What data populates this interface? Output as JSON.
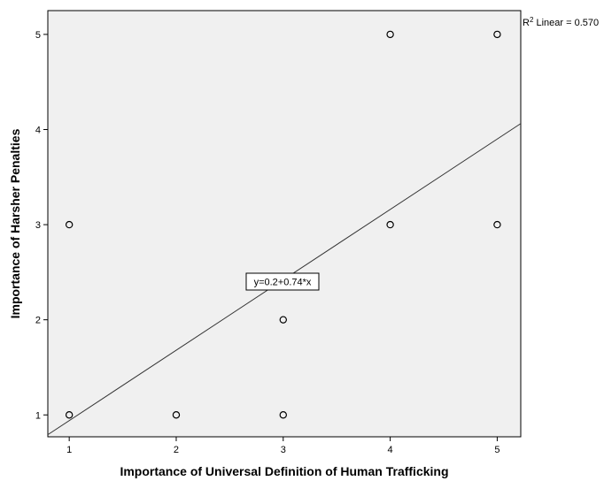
{
  "chart_data": {
    "type": "scatter",
    "title": "",
    "xlabel": "Importance of Universal Definition of Human Trafficking",
    "ylabel": "Importance of Harsher Penalties",
    "xlim": [
      0.8,
      5.22
    ],
    "ylim": [
      0.77,
      5.25
    ],
    "x_ticks": [
      1,
      2,
      3,
      4,
      5
    ],
    "y_ticks": [
      1,
      2,
      3,
      4,
      5
    ],
    "grid": false,
    "points": [
      {
        "x": 1,
        "y": 1
      },
      {
        "x": 1,
        "y": 3
      },
      {
        "x": 2,
        "y": 1
      },
      {
        "x": 3,
        "y": 1
      },
      {
        "x": 3,
        "y": 2
      },
      {
        "x": 4,
        "y": 3
      },
      {
        "x": 4,
        "y": 5
      },
      {
        "x": 5,
        "y": 3
      },
      {
        "x": 5,
        "y": 5
      }
    ],
    "fit_line": {
      "intercept": 0.2,
      "slope": 0.74
    },
    "fit_label": "y=0.2+0.74*x",
    "r2_label": {
      "prefix": "R",
      "superscript": "2",
      "suffix": " Linear = 0.570"
    },
    "colors": {
      "plot_background": "#f0f0f0",
      "axis": "#000000",
      "marker": "#000000",
      "fit_line": "#333333"
    }
  }
}
